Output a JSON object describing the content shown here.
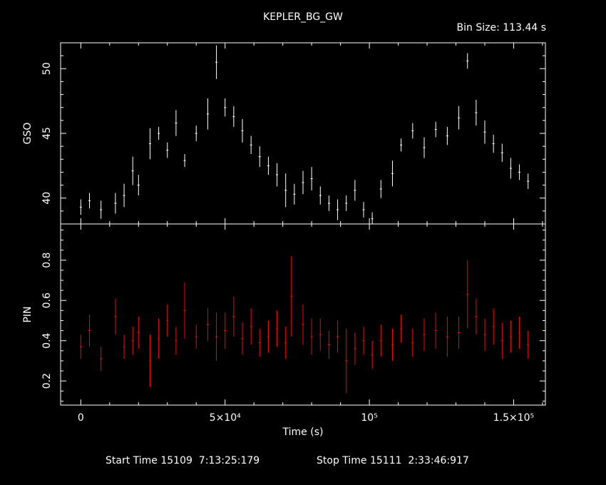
{
  "title": "KEPLER_BG_GW",
  "bin_size": "Bin Size: 113.44 s",
  "footer": {
    "start_label": "Start Time 15109  7:13:25:179",
    "stop_label": "Stop Time 15111  2:33:46:917"
  },
  "colors": {
    "background": "#000000",
    "axes": "#ffffff",
    "gso": "#ffffff",
    "pin": "#ff0000"
  },
  "chart_data": [
    {
      "type": "scatter",
      "title": "",
      "ylabel": "GSO",
      "xlabel": "",
      "xlim": [
        -7000,
        161000
      ],
      "ylim": [
        38,
        52
      ],
      "yticks": [
        40,
        45,
        50
      ],
      "grid": false,
      "error_bars": true,
      "x": [
        0,
        3000,
        7000,
        12000,
        15000,
        18000,
        20000,
        24000,
        27000,
        30000,
        33000,
        36000,
        40000,
        44000,
        47000,
        50000,
        53000,
        56000,
        59000,
        62000,
        65000,
        68000,
        71000,
        74000,
        77000,
        80000,
        83000,
        86000,
        89000,
        92000,
        95000,
        98000,
        101000,
        104000,
        108000,
        111000,
        115000,
        119000,
        123000,
        127000,
        131000,
        134000,
        137000,
        140000,
        143000,
        146000,
        149000,
        152000,
        155000
      ],
      "y": [
        39.3,
        39.8,
        39.1,
        39.6,
        40.2,
        42.1,
        41.0,
        44.2,
        45.0,
        43.7,
        45.8,
        42.9,
        45.0,
        46.5,
        50.5,
        47.0,
        46.3,
        45.2,
        44.1,
        43.2,
        42.5,
        41.8,
        40.6,
        40.3,
        41.2,
        41.5,
        40.2,
        39.6,
        39.1,
        39.6,
        40.6,
        39.1,
        38.4,
        40.7,
        41.9,
        44.1,
        45.2,
        43.9,
        45.3,
        44.8,
        46.2,
        50.6,
        46.6,
        45.1,
        44.2,
        43.5,
        42.3,
        42.0,
        41.3
      ],
      "err": [
        0.6,
        0.6,
        0.7,
        0.8,
        0.9,
        1.1,
        0.8,
        1.2,
        0.5,
        0.6,
        1.0,
        0.5,
        0.6,
        1.2,
        1.3,
        0.7,
        0.8,
        0.9,
        0.7,
        0.8,
        0.7,
        0.9,
        1.3,
        0.8,
        0.9,
        0.9,
        0.7,
        0.6,
        0.8,
        0.6,
        0.8,
        0.6,
        0.5,
        0.7,
        1.0,
        0.5,
        0.6,
        0.8,
        0.6,
        0.7,
        0.9,
        0.6,
        1.0,
        0.9,
        0.7,
        0.7,
        0.8,
        0.6,
        0.6
      ]
    },
    {
      "type": "scatter",
      "title": "",
      "ylabel": "PIN",
      "xlabel": "Time (s)",
      "xlim": [
        -7000,
        161000
      ],
      "ylim": [
        0.08,
        0.98
      ],
      "yticks": [
        0.2,
        0.4,
        0.6,
        0.8
      ],
      "xticks": [
        0,
        50000,
        100000,
        150000
      ],
      "xtick_labels": [
        "0",
        "5×10⁴",
        "10⁵",
        "1.5×10⁵"
      ],
      "grid": false,
      "error_bars": true,
      "x": [
        0,
        3000,
        7000,
        12000,
        15000,
        18000,
        20000,
        24000,
        27000,
        30000,
        33000,
        36000,
        40000,
        44000,
        47000,
        50000,
        53000,
        56000,
        59000,
        62000,
        65000,
        68000,
        71000,
        73000,
        77000,
        80000,
        83000,
        86000,
        89000,
        92000,
        95000,
        98000,
        101000,
        104000,
        108000,
        111000,
        115000,
        119000,
        123000,
        127000,
        131000,
        134000,
        137000,
        140000,
        143000,
        146000,
        149000,
        152000,
        155000
      ],
      "y": [
        0.37,
        0.45,
        0.31,
        0.52,
        0.37,
        0.4,
        0.44,
        0.3,
        0.41,
        0.5,
        0.4,
        0.55,
        0.42,
        0.48,
        0.42,
        0.45,
        0.52,
        0.41,
        0.47,
        0.39,
        0.42,
        0.46,
        0.39,
        0.62,
        0.48,
        0.42,
        0.43,
        0.38,
        0.42,
        0.3,
        0.36,
        0.4,
        0.33,
        0.4,
        0.38,
        0.46,
        0.39,
        0.43,
        0.45,
        0.42,
        0.44,
        0.63,
        0.52,
        0.43,
        0.47,
        0.4,
        0.42,
        0.44,
        0.38
      ],
      "err": [
        0.06,
        0.08,
        0.06,
        0.09,
        0.06,
        0.07,
        0.08,
        0.13,
        0.1,
        0.08,
        0.07,
        0.14,
        0.06,
        0.08,
        0.12,
        0.09,
        0.1,
        0.08,
        0.09,
        0.07,
        0.08,
        0.09,
        0.08,
        0.2,
        0.1,
        0.09,
        0.08,
        0.07,
        0.08,
        0.16,
        0.08,
        0.07,
        0.07,
        0.08,
        0.08,
        0.07,
        0.07,
        0.08,
        0.09,
        0.1,
        0.08,
        0.17,
        0.09,
        0.08,
        0.09,
        0.09,
        0.08,
        0.08,
        0.07
      ]
    }
  ]
}
